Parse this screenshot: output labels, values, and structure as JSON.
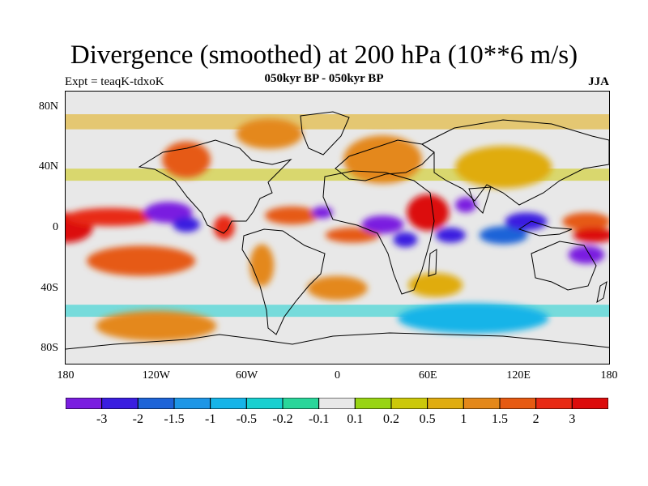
{
  "title": "Divergence (smoothed) at 200 hPa (10**6 m/s)",
  "experiment": "Expt = teaqK-tdxoK",
  "period": "050kyr BP - 050kyr BP",
  "season": "JJA",
  "axes": {
    "y_ticks": [
      "80N",
      "40N",
      "0",
      "40S",
      "80S"
    ],
    "x_ticks": [
      "180",
      "120W",
      "60W",
      "0",
      "60E",
      "120E",
      "180"
    ]
  },
  "colorbar": {
    "colors": [
      "#7a1ee0",
      "#3a1ee0",
      "#1e64d8",
      "#1e96e6",
      "#16b4e8",
      "#18d0d0",
      "#2ad69a",
      "#e8e8e8",
      "#98d414",
      "#ccc80a",
      "#e0ac10",
      "#e4881a",
      "#e65a12",
      "#e82a14",
      "#dc0c0c"
    ],
    "labels": [
      "-3",
      "-2",
      "-1.5",
      "-1",
      "-0.5",
      "-0.2",
      "-0.1",
      "0.1",
      "0.2",
      "0.5",
      "1",
      "1.5",
      "2",
      "3"
    ]
  },
  "blobs": [
    {
      "lon": -180,
      "lat": 0,
      "rx": 18,
      "ry": 10,
      "c": 14
    },
    {
      "lon": -150,
      "lat": 7,
      "rx": 30,
      "ry": 6,
      "c": 13
    },
    {
      "lon": -112,
      "lat": 10,
      "rx": 16,
      "ry": 7,
      "c": 0
    },
    {
      "lon": -100,
      "lat": 2,
      "rx": 9,
      "ry": 5,
      "c": 1
    },
    {
      "lon": -130,
      "lat": -22,
      "rx": 36,
      "ry": 10,
      "c": 12
    },
    {
      "lon": -75,
      "lat": 0,
      "rx": 7,
      "ry": 8,
      "c": 13
    },
    {
      "lon": -50,
      "lat": -25,
      "rx": 8,
      "ry": 14,
      "c": 11
    },
    {
      "lon": -30,
      "lat": 8,
      "rx": 18,
      "ry": 6,
      "c": 12
    },
    {
      "lon": -10,
      "lat": 10,
      "rx": 7,
      "ry": 4,
      "c": 0
    },
    {
      "lon": 10,
      "lat": -5,
      "rx": 18,
      "ry": 5,
      "c": 12
    },
    {
      "lon": 30,
      "lat": 2,
      "rx": 14,
      "ry": 6,
      "c": 0
    },
    {
      "lon": 45,
      "lat": -8,
      "rx": 8,
      "ry": 5,
      "c": 1
    },
    {
      "lon": 60,
      "lat": 10,
      "rx": 14,
      "ry": 12,
      "c": 14
    },
    {
      "lon": 85,
      "lat": 15,
      "rx": 7,
      "ry": 5,
      "c": 0
    },
    {
      "lon": 75,
      "lat": -5,
      "rx": 10,
      "ry": 5,
      "c": 1
    },
    {
      "lon": 110,
      "lat": -5,
      "rx": 16,
      "ry": 6,
      "c": 2
    },
    {
      "lon": 125,
      "lat": 4,
      "rx": 14,
      "ry": 6,
      "c": 1
    },
    {
      "lon": 165,
      "lat": 4,
      "rx": 16,
      "ry": 6,
      "c": 12
    },
    {
      "lon": 170,
      "lat": -5,
      "rx": 14,
      "ry": 5,
      "c": 14
    },
    {
      "lon": 165,
      "lat": -18,
      "rx": 12,
      "ry": 6,
      "c": 0
    },
    {
      "lon": -100,
      "lat": 45,
      "rx": 16,
      "ry": 12,
      "c": 12
    },
    {
      "lon": -45,
      "lat": 62,
      "rx": 22,
      "ry": 10,
      "c": 11
    },
    {
      "lon": 30,
      "lat": 45,
      "rx": 26,
      "ry": 16,
      "c": 11
    },
    {
      "lon": 110,
      "lat": 40,
      "rx": 32,
      "ry": 14,
      "c": 10
    },
    {
      "lon": 0,
      "lat": -40,
      "rx": 20,
      "ry": 8,
      "c": 11
    },
    {
      "lon": 65,
      "lat": -38,
      "rx": 18,
      "ry": 8,
      "c": 10
    },
    {
      "lon": 90,
      "lat": -60,
      "rx": 50,
      "ry": 10,
      "c": 4
    },
    {
      "lon": -120,
      "lat": -65,
      "rx": 40,
      "ry": 10,
      "c": 11
    }
  ]
}
